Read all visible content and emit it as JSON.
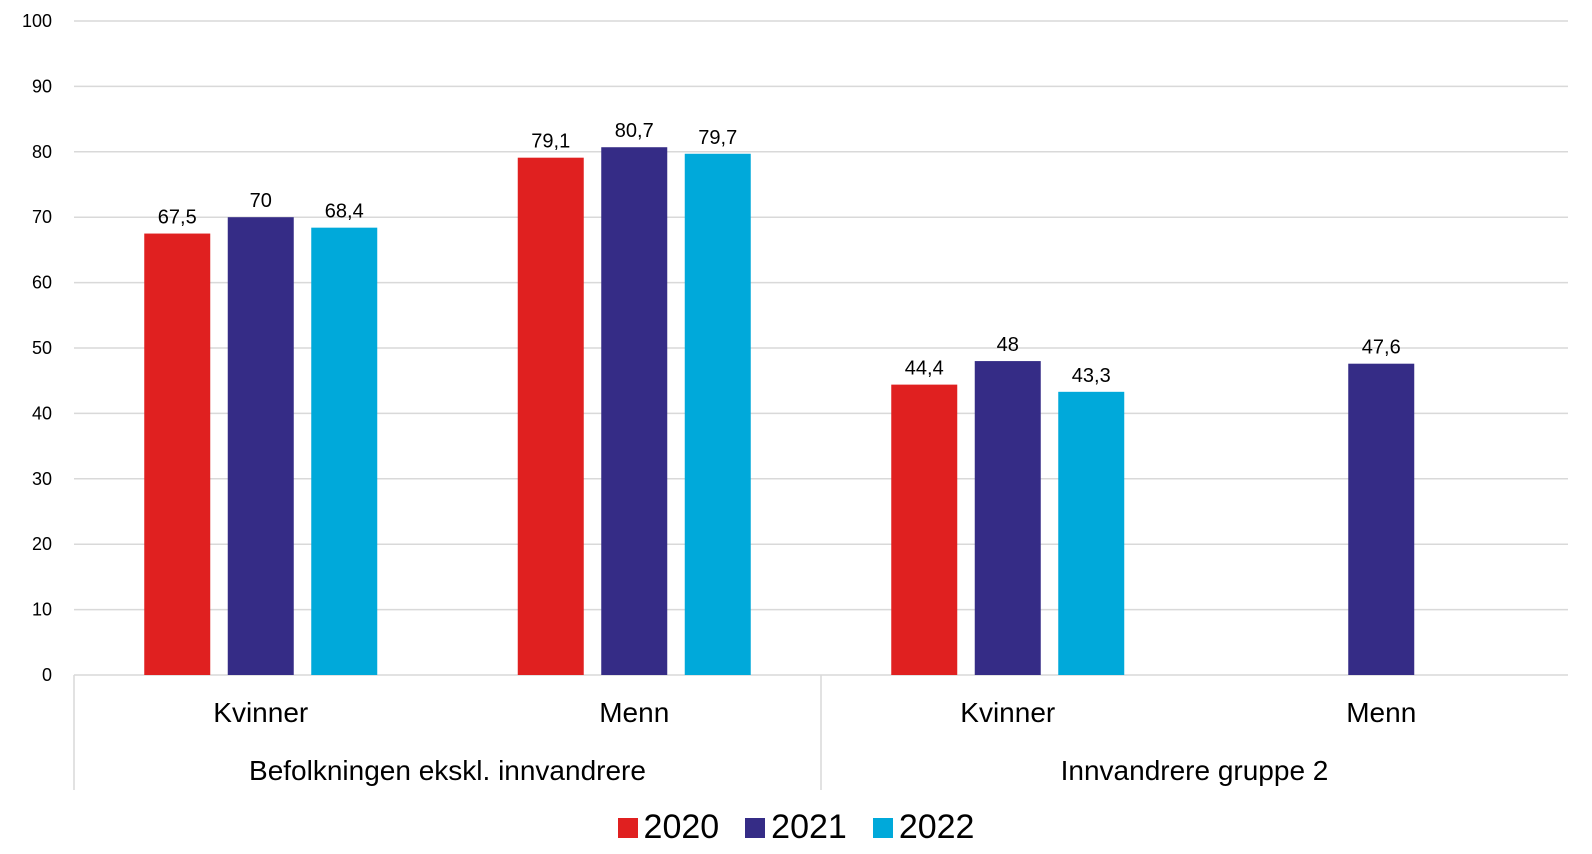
{
  "chart_data": {
    "type": "bar",
    "groups": [
      {
        "label": "Befolkningen ekskl. innvandrere",
        "categories": [
          "Kvinner",
          "Menn"
        ]
      },
      {
        "label": "Innvandrere gruppe 2",
        "categories": [
          "Kvinner",
          "Menn"
        ]
      }
    ],
    "categories": [
      "Kvinner",
      "Menn",
      "Kvinner",
      "Menn"
    ],
    "series": [
      {
        "name": "2020",
        "color": "#e02020",
        "values": [
          67.5,
          79.1,
          44.4,
          null
        ],
        "labels": [
          "67,5",
          "79,1",
          "44,4",
          ""
        ]
      },
      {
        "name": "2021",
        "color": "#352c86",
        "values": [
          70,
          80.7,
          48,
          47.6
        ],
        "labels": [
          "70",
          "80,7",
          "48",
          "47,6"
        ]
      },
      {
        "name": "2022",
        "color": "#00a9da",
        "values": [
          68.4,
          79.7,
          43.3,
          null
        ],
        "labels": [
          "68,4",
          "79,7",
          "43,3",
          ""
        ]
      }
    ],
    "ylim": [
      0,
      100
    ],
    "yticks": [
      "0",
      "10",
      "20",
      "30",
      "40",
      "50",
      "60",
      "70",
      "80",
      "90",
      "100"
    ],
    "grid": true,
    "legend_position": "bottom"
  }
}
